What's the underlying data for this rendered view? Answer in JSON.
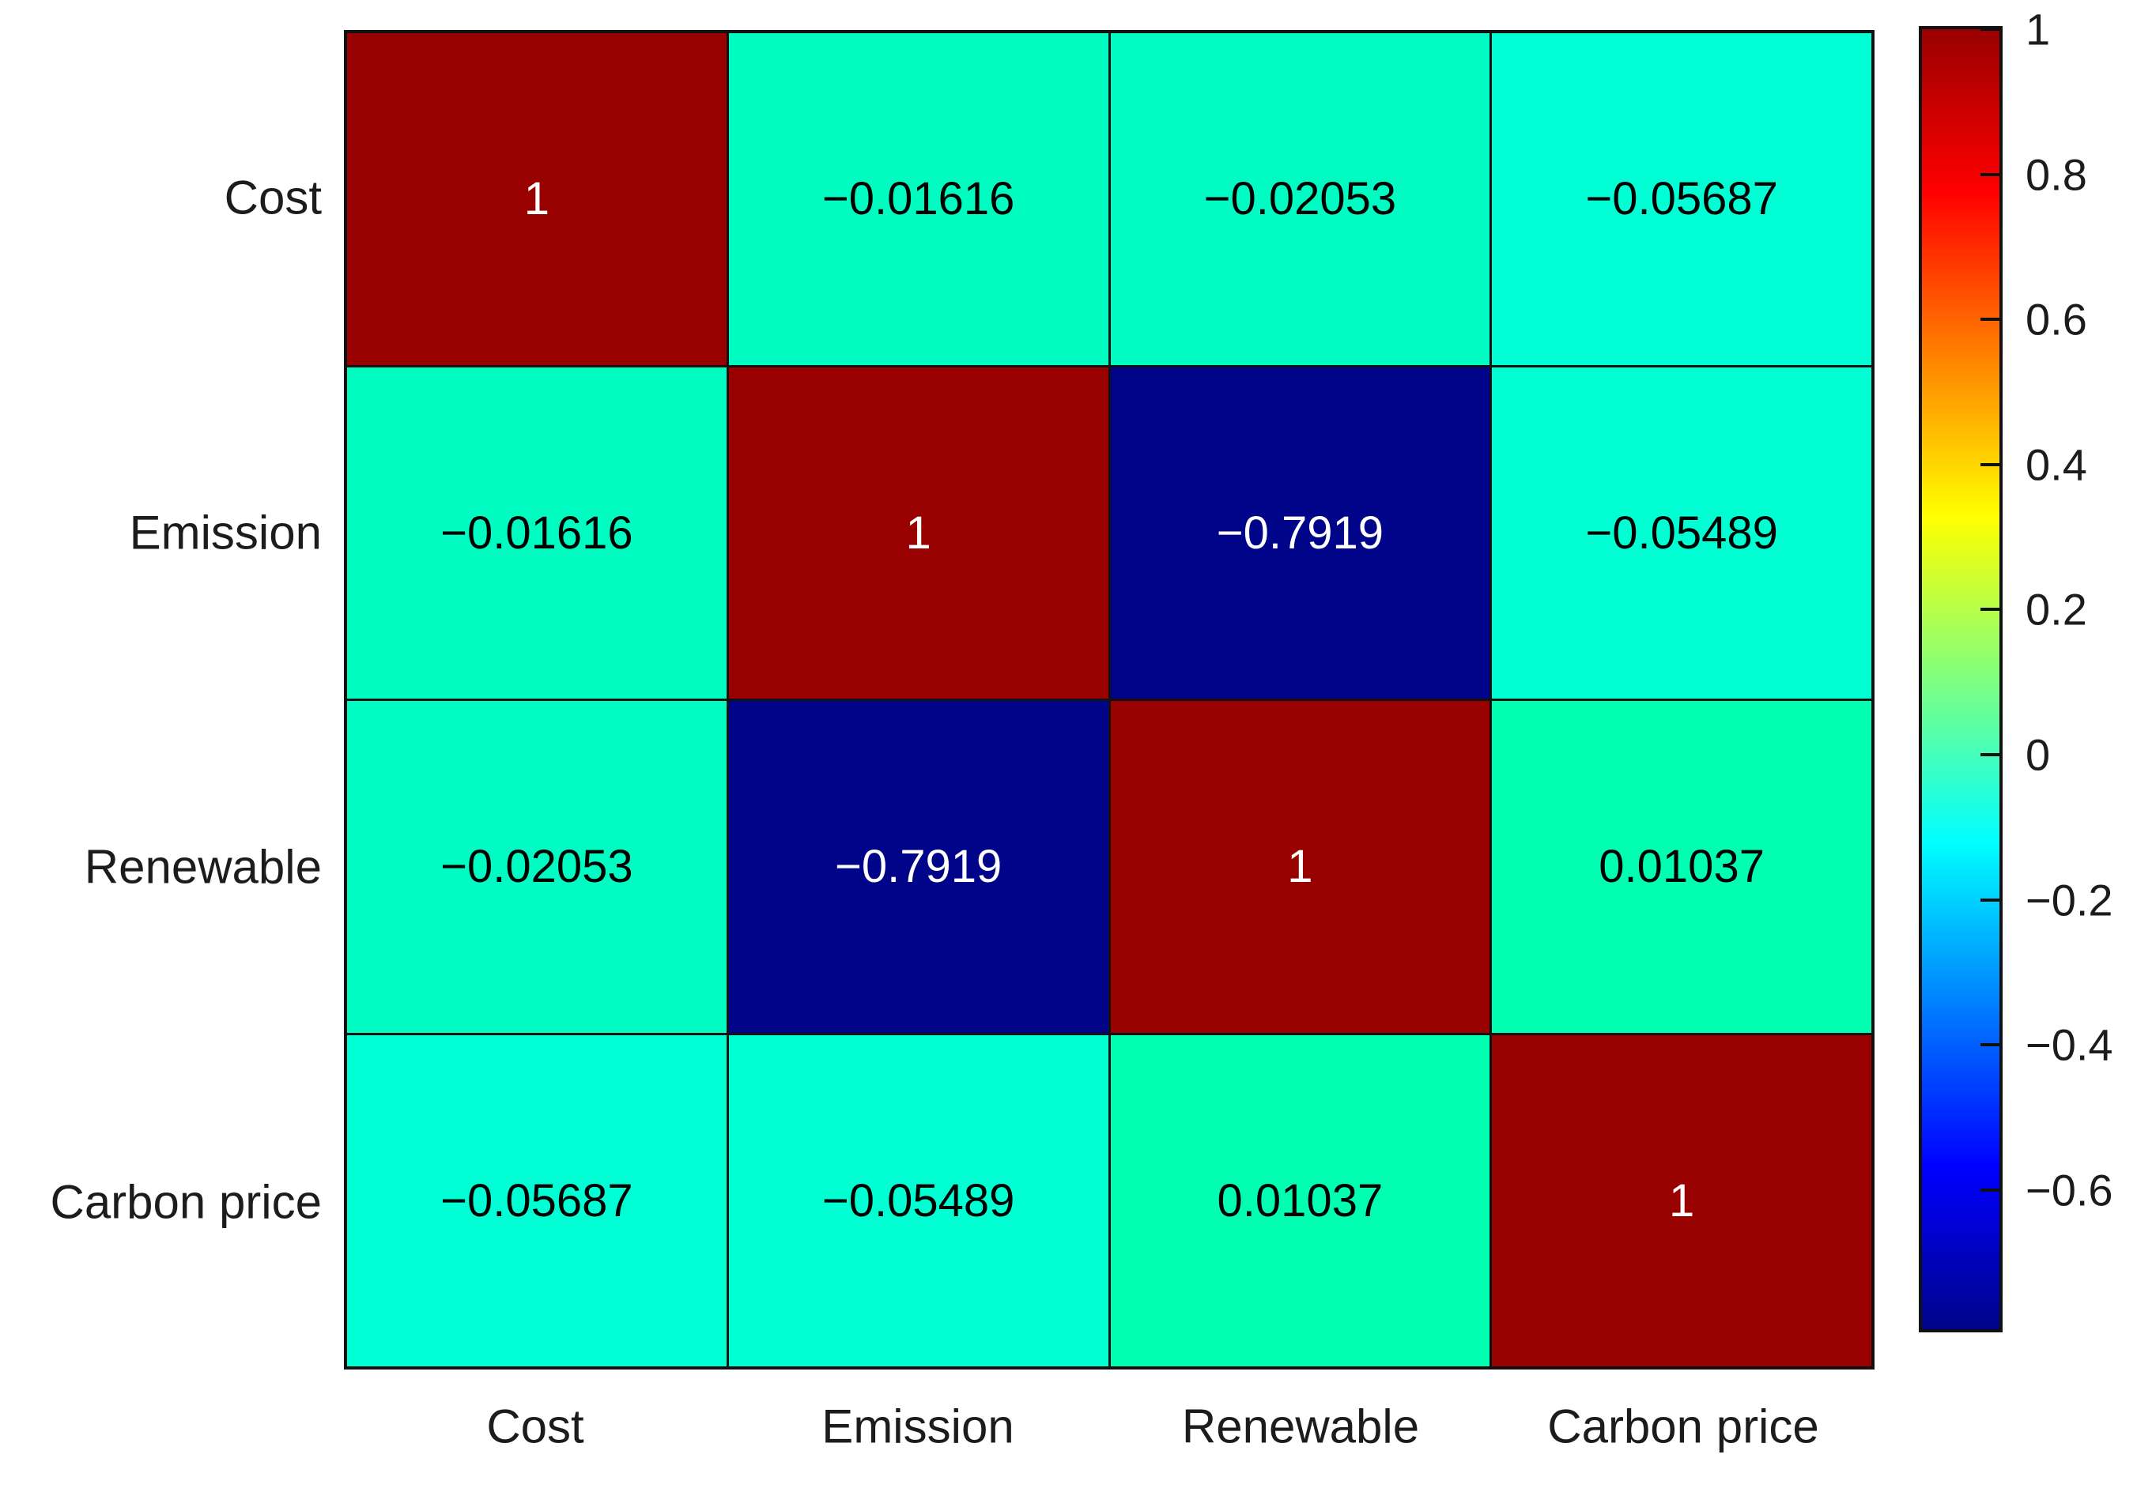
{
  "figure": {
    "background": "#FFFFFF",
    "axis_color": "#111111",
    "label_color": "#1C1C1C"
  },
  "chart_data": {
    "type": "heatmap",
    "title": "",
    "categories": [
      "Cost",
      "Emission",
      "Renewable",
      "Carbon price"
    ],
    "x_labels": [
      "Cost",
      "Emission",
      "Renewable",
      "Carbon price"
    ],
    "y_labels": [
      "Cost",
      "Emission",
      "Renewable",
      "Carbon price"
    ],
    "matrix": [
      [
        1,
        -0.01616,
        -0.02053,
        -0.05687
      ],
      [
        -0.01616,
        1,
        -0.7919,
        -0.05489
      ],
      [
        -0.02053,
        -0.7919,
        1,
        0.01037
      ],
      [
        -0.05687,
        -0.05489,
        0.01037,
        1
      ]
    ],
    "cell_labels": [
      [
        "1",
        "−0.01616",
        "−0.02053",
        "−0.05687"
      ],
      [
        "−0.01616",
        "1",
        "−0.7919",
        "−0.05489"
      ],
      [
        "−0.02053",
        "−0.7919",
        "1",
        "0.01037"
      ],
      [
        "−0.05687",
        "−0.05489",
        "0.01037",
        "1"
      ]
    ],
    "cell_colors": [
      [
        "#990000",
        "#00FCC1",
        "#00FCC3",
        "#00FFD4"
      ],
      [
        "#00FCC1",
        "#990000",
        "#000489",
        "#00FFD2"
      ],
      [
        "#00FCC3",
        "#000489",
        "#990000",
        "#00FFB0"
      ],
      [
        "#00FFD4",
        "#00FFD2",
        "#00FFB0",
        "#990000"
      ]
    ],
    "cell_text_colors": [
      [
        "#FFFFFF",
        "#000000",
        "#000000",
        "#000000"
      ],
      [
        "#000000",
        "#FFFFFF",
        "#FFFFFF",
        "#000000"
      ],
      [
        "#000000",
        "#FFFFFF",
        "#FFFFFF",
        "#000000"
      ],
      [
        "#000000",
        "#000000",
        "#000000",
        "#FFFFFF"
      ]
    ],
    "grid": true,
    "legend_position": "right-colorbar",
    "colorbar": {
      "colormap": "jet",
      "clim": [
        -0.7919,
        1
      ],
      "tick_labels": [
        "1",
        "0.8",
        "0.6",
        "0.4",
        "0.2",
        "0",
        "−0.2",
        "−0.4",
        "−0.6"
      ],
      "tick_values": [
        1,
        0.8,
        0.6,
        0.4,
        0.2,
        0,
        -0.2,
        -0.4,
        -0.6
      ],
      "gradient_stops": [
        {
          "pos": 0,
          "color": "#990000"
        },
        {
          "pos": 12.5,
          "color": "#FF0000"
        },
        {
          "pos": 37.5,
          "color": "#FFFF00"
        },
        {
          "pos": 62.5,
          "color": "#00FFFF"
        },
        {
          "pos": 87.5,
          "color": "#0000FF"
        },
        {
          "pos": 100,
          "color": "#000489"
        }
      ]
    }
  }
}
